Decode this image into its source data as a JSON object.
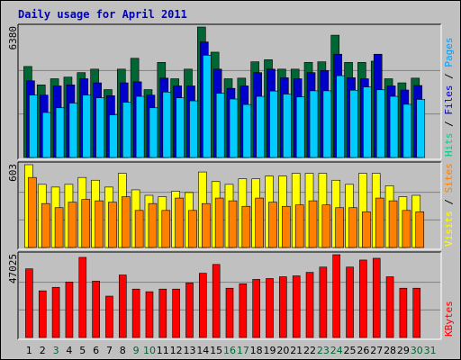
{
  "chart_data": {
    "type": "bar",
    "title": "Daily usage for April 2011",
    "categories": [
      "1",
      "2",
      "3",
      "4",
      "5",
      "6",
      "7",
      "8",
      "9",
      "10",
      "11",
      "12",
      "13",
      "14",
      "15",
      "16",
      "17",
      "18",
      "19",
      "20",
      "21",
      "22",
      "23",
      "24",
      "25",
      "26",
      "27",
      "28",
      "29",
      "30",
      "31"
    ],
    "category_colors": [
      "#000000",
      "#000000",
      "#006633",
      "#000000",
      "#000000",
      "#000000",
      "#000000",
      "#000000",
      "#006633",
      "#006633",
      "#000000",
      "#000000",
      "#000000",
      "#000000",
      "#000000",
      "#006633",
      "#006633",
      "#000000",
      "#000000",
      "#000000",
      "#000000",
      "#000000",
      "#006633",
      "#006633",
      "#000000",
      "#000000",
      "#000000",
      "#000000",
      "#000000",
      "#006633",
      "#006633"
    ],
    "panels": [
      {
        "name": "top",
        "ymax": 6380,
        "ytick_label": "6380",
        "legend": [
          {
            "text": "Hits",
            "color": "#00cc88"
          },
          {
            "text": " / ",
            "color": "#000000"
          },
          {
            "text": "Files",
            "color": "#0000cc"
          },
          {
            "text": " / ",
            "color": "#000000"
          },
          {
            "text": "Pages",
            "color": "#00a0ff"
          }
        ],
        "series": [
          {
            "name": "Hits",
            "color": "#006633",
            "values": [
              4450,
              3550,
              3850,
              3930,
              4150,
              4320,
              3320,
              4320,
              4850,
              3320,
              4650,
              3850,
              4320,
              6380,
              5150,
              3850,
              3880,
              4680,
              4780,
              4320,
              4320,
              4650,
              4680,
              5980,
              4650,
              4650,
              4710,
              3850,
              3650,
              3880,
              0
            ]
          },
          {
            "name": "Files",
            "color": "#0000cc",
            "values": [
              3750,
              3050,
              3500,
              3550,
              3850,
              3650,
              3020,
              3650,
              3700,
              3050,
              3880,
              3500,
              3500,
              5650,
              4320,
              3380,
              3500,
              4150,
              4320,
              3900,
              3850,
              4150,
              4250,
              5050,
              3900,
              3850,
              5050,
              3500,
              3300,
              3520,
              0
            ]
          },
          {
            "name": "Pages",
            "color": "#00ccff",
            "values": [
              3050,
              2200,
              2430,
              2660,
              3050,
              2920,
              2080,
              2700,
              2990,
              2430,
              3200,
              2920,
              2770,
              5000,
              3140,
              2860,
              2590,
              2990,
              3250,
              3100,
              2960,
              3260,
              3260,
              4000,
              3290,
              3450,
              3310,
              2990,
              2600,
              2840,
              0
            ]
          }
        ]
      },
      {
        "name": "middle",
        "ymax": 603,
        "ytick_label": "603",
        "legend": [
          {
            "text": "Visits",
            "color": "#ffff00"
          },
          {
            "text": " / ",
            "color": "#000000"
          },
          {
            "text": "Sites",
            "color": "#ff8000"
          }
        ],
        "series": [
          {
            "name": "Visits",
            "color": "#ffff00",
            "values": [
              603,
              460,
              440,
              460,
              510,
              490,
              440,
              540,
              420,
              380,
              370,
              410,
              400,
              550,
              480,
              460,
              500,
              500,
              520,
              520,
              540,
              540,
              540,
              490,
              460,
              540,
              540,
              450,
              370,
              380,
              0
            ]
          },
          {
            "name": "Sites",
            "color": "#ff8000",
            "values": [
              510,
              320,
              290,
              330,
              350,
              340,
              330,
              370,
              270,
              320,
              270,
              360,
              270,
              320,
              360,
              340,
              300,
              360,
              330,
              300,
              310,
              340,
              310,
              290,
              290,
              260,
              360,
              340,
              270,
              260,
              0
            ]
          }
        ]
      },
      {
        "name": "bottom",
        "ymax": 47025,
        "ytick_label": "47025",
        "legend": [
          {
            "text": "KBytes",
            "color": "#ff0000"
          }
        ],
        "series": [
          {
            "name": "KBytes",
            "color": "#ff0000",
            "values": [
              39000,
              26500,
              28500,
              31500,
              45500,
              32000,
              23500,
              35500,
              27500,
              26000,
              27500,
              27500,
              31000,
              36500,
              41500,
              28000,
              30500,
              33000,
              33500,
              34500,
              35000,
              37000,
              40000,
              47025,
              40000,
              44000,
              45000,
              34500,
              28000,
              28000,
              0
            ]
          }
        ]
      }
    ]
  }
}
